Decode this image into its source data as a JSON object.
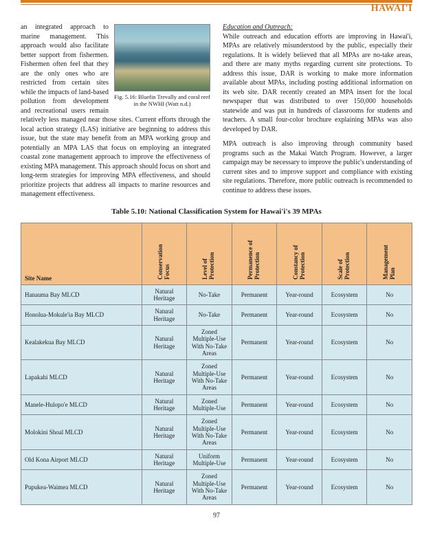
{
  "header": {
    "title": "HAWAI'I"
  },
  "col1": {
    "p1": "an integrated approach to marine management.  This approach would also facilitate better support from fishermen.  Fishermen often feel that they are the only ones who are restricted from certain sites while the impacts of land-based pollution from development and recreational users remain relatively less managed near those sites.  Current efforts through the local action strategy (LAS) initiative are beginning to address this issue, but the state may benefit from an MPA working group and potentially an MPA LAS that focus on employing an integrated coastal zone management approach to improve the effectiveness of existing MPA management.  This approach should focus on short and long-term strategies for improving MPA effectiveness, and should prioritize projects that address all impacts to marine resources and management effectiveness."
  },
  "figure": {
    "caption": "Fig. 5.16: Bluefin Trevally and coral reef in the NWHI (Watt n.d.)"
  },
  "col2": {
    "heading": "Education and Outreach:",
    "p1": "While outreach and education efforts are improving in Hawai'i, MPAs are relatively misunderstood by the public, especially their regulations.  It is widely believed that all MPAs are no-take areas, and there are many myths regarding current site protections.  To address this issue, DAR is working to make more information available about MPAs, including posting additional information on its web site.  DAR recently created an MPA insert for the local newspaper that was distributed to over 150,000 households statewide and was put in hundreds of classrooms for students and teachers.  A small four-color brochure explaining MPAs was also developed by DAR.",
    "p2": "MPA outreach is also improving through community based programs such as the Makai Watch Program.  However, a larger campaign may be necessary to improve the public's understanding of current sites and to improve support and compliance with existing site regulations.  Therefore, more public outreach is recommended to continue to address these issues."
  },
  "table": {
    "title": "Table 5.10: National Classification System for Hawai'i's 39 MPAs",
    "headers": {
      "site": "Site Name",
      "h1a": "Conservation",
      "h1b": "Focus",
      "h2a": "Level of",
      "h2b": "Protection",
      "h3a": "Permanence of",
      "h3b": "Protection",
      "h4a": "Constancy of",
      "h4b": "Protection",
      "h5a": "Scale of",
      "h5b": "Protection",
      "h6a": "Management",
      "h6b": "Plan"
    },
    "rows": [
      {
        "site": "Hanauma Bay MLCD",
        "c1": "Natural Heritage",
        "c2": "No-Take",
        "c3": "Permanent",
        "c4": "Year-round",
        "c5": "Ecosystem",
        "c6": "No"
      },
      {
        "site": "Honolua-Mokule'ia Bay MLCD",
        "c1": "Natural Heritage",
        "c2": "No-Take",
        "c3": "Permanent",
        "c4": "Year-round",
        "c5": "Ecosystem",
        "c6": "No"
      },
      {
        "site": "Kealakekua Bay MLCD",
        "c1": "Natural Heritage",
        "c2": "Zoned Multiple-Use With No-Take Areas",
        "c3": "Permanent",
        "c4": "Year-round",
        "c5": "Ecosystem",
        "c6": "No"
      },
      {
        "site": "Lapakahi MLCD",
        "c1": "Natural Heritage",
        "c2": "Zoned Multiple-Use With No-Take Areas",
        "c3": "Permanent",
        "c4": "Year-round",
        "c5": "Ecosystem",
        "c6": "No"
      },
      {
        "site": "Manele-Hulopo'e MLCD",
        "c1": "Natural Heritage",
        "c2": "Zoned Multiple-Use",
        "c3": "Permanent",
        "c4": "Year-round",
        "c5": "Ecosystem",
        "c6": "No"
      },
      {
        "site": "Molokini Shoal MLCD",
        "c1": "Natural Heritage",
        "c2": "Zoned Multiple-Use With No-Take Areas",
        "c3": "Permanent",
        "c4": "Year-round",
        "c5": "Ecosystem",
        "c6": "No"
      },
      {
        "site": "Old Kona Airport MLCD",
        "c1": "Natural Heritage",
        "c2": "Uniform Multiple-Use",
        "c3": "Permanent",
        "c4": "Year-round",
        "c5": "Ecosystem",
        "c6": "No"
      },
      {
        "site": "Pupukea-Waimea MLCD",
        "c1": "Natural Heritage",
        "c2": "Zoned Multiple-Use With No-Take Areas",
        "c3": "Permanent",
        "c4": "Year-round",
        "c5": "Ecosystem",
        "c6": "No"
      }
    ]
  },
  "pageNumber": "97"
}
